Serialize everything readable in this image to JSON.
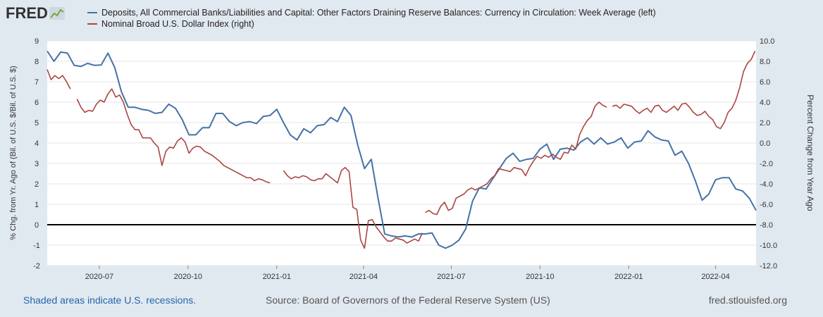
{
  "logo": {
    "text": "FRED",
    "icon": "fred-chart-icon"
  },
  "legend": [
    {
      "label": "Deposits, All Commercial Banks/Liabilities and Capital: Other Factors Draining Reserve Balances: Currency in Circulation: Week Average (left)",
      "color": "#4572a7"
    },
    {
      "label": "Nominal Broad U.S. Dollar Index (right)",
      "color": "#aa4643"
    }
  ],
  "footer": {
    "recession_note": "Shaded areas indicate U.S. recessions.",
    "source": "Source: Board of Governors of the Federal Reserve System (US)",
    "site": "fred.stlouisfed.org"
  },
  "chart_data": {
    "type": "line",
    "x_range": [
      "2020-05-08",
      "2022-05-13"
    ],
    "x_ticks": [
      {
        "date": "2020-07-01",
        "label": "2020-07"
      },
      {
        "date": "2020-10-01",
        "label": "2020-10"
      },
      {
        "date": "2021-01-01",
        "label": "2021-01"
      },
      {
        "date": "2021-04-01",
        "label": "2021-04"
      },
      {
        "date": "2021-07-01",
        "label": "2021-07"
      },
      {
        "date": "2021-10-01",
        "label": "2021-10"
      },
      {
        "date": "2022-01-01",
        "label": "2022-01"
      },
      {
        "date": "2022-04-01",
        "label": "2022-04"
      }
    ],
    "y_left": {
      "label": "% Chg. from Yr. Ago of (Bil. of U.S. $/Bil. of U.S. $)",
      "range": [
        -2,
        9
      ],
      "ticks": [
        9,
        8,
        7,
        6,
        5,
        4,
        3,
        2,
        1,
        0,
        -1,
        -2
      ],
      "tick_labels": [
        "9",
        "8",
        "7",
        "6",
        "5",
        "4",
        "3",
        "2",
        "1",
        "0",
        "-1",
        "-2"
      ]
    },
    "y_right": {
      "label": "Percent Change from Year Ago",
      "range": [
        -12,
        10
      ],
      "ticks": [
        10,
        8,
        6,
        4,
        2,
        0,
        -2,
        -4,
        -6,
        -8,
        -10,
        -12
      ],
      "tick_labels": [
        "10.0",
        "8.0",
        "6.0",
        "4.0",
        "2.0",
        "0.0",
        "-2.0",
        "-4.0",
        "-6.0",
        "-8.0",
        "-10.0",
        "-12.0"
      ]
    },
    "zero_line_left": 0,
    "series": [
      {
        "name": "Currency in Circulation: Week Average (left)",
        "axis": "left",
        "color": "#4572a7",
        "dates": [
          "2020-05-08",
          "2020-05-15",
          "2020-05-22",
          "2020-05-29",
          "2020-06-05",
          "2020-06-12",
          "2020-06-19",
          "2020-06-26",
          "2020-07-03",
          "2020-07-10",
          "2020-07-17",
          "2020-07-24",
          "2020-07-31",
          "2020-08-07",
          "2020-08-14",
          "2020-08-21",
          "2020-08-28",
          "2020-09-04",
          "2020-09-11",
          "2020-09-18",
          "2020-09-25",
          "2020-10-02",
          "2020-10-09",
          "2020-10-16",
          "2020-10-23",
          "2020-10-30",
          "2020-11-06",
          "2020-11-13",
          "2020-11-20",
          "2020-11-27",
          "2020-12-04",
          "2020-12-11",
          "2020-12-18",
          "2020-12-25",
          "2021-01-01",
          "2021-01-08",
          "2021-01-15",
          "2021-01-22",
          "2021-01-29",
          "2021-02-05",
          "2021-02-12",
          "2021-02-19",
          "2021-02-26",
          "2021-03-05",
          "2021-03-12",
          "2021-03-19",
          "2021-03-26",
          "2021-04-02",
          "2021-04-09",
          "2021-04-16",
          "2021-04-23",
          "2021-04-30",
          "2021-05-07",
          "2021-05-14",
          "2021-05-21",
          "2021-05-28",
          "2021-06-04",
          "2021-06-11",
          "2021-06-18",
          "2021-06-25",
          "2021-07-02",
          "2021-07-09",
          "2021-07-16",
          "2021-07-23",
          "2021-07-30",
          "2021-08-06",
          "2021-08-13",
          "2021-08-20",
          "2021-08-27",
          "2021-09-03",
          "2021-09-10",
          "2021-09-17",
          "2021-09-24",
          "2021-10-01",
          "2021-10-08",
          "2021-10-15",
          "2021-10-22",
          "2021-10-29",
          "2021-11-05",
          "2021-11-12",
          "2021-11-19",
          "2021-11-26",
          "2021-12-03",
          "2021-12-10",
          "2021-12-17",
          "2021-12-24",
          "2021-12-31",
          "2022-01-07",
          "2022-01-14",
          "2022-01-21",
          "2022-01-28",
          "2022-02-04",
          "2022-02-11",
          "2022-02-18",
          "2022-02-25",
          "2022-03-04",
          "2022-03-11",
          "2022-03-18",
          "2022-03-25",
          "2022-04-01",
          "2022-04-08",
          "2022-04-15",
          "2022-04-22",
          "2022-04-29",
          "2022-05-06",
          "2022-05-13"
        ],
        "values": [
          8.5,
          8.0,
          8.45,
          8.4,
          7.8,
          7.75,
          7.9,
          7.8,
          7.82,
          8.4,
          7.7,
          6.5,
          5.75,
          5.75,
          5.65,
          5.6,
          5.45,
          5.5,
          5.9,
          5.7,
          5.15,
          4.4,
          4.4,
          4.75,
          4.75,
          5.45,
          5.45,
          5.05,
          4.85,
          5.0,
          5.05,
          4.95,
          5.3,
          5.35,
          5.65,
          5.0,
          4.4,
          4.15,
          4.7,
          4.5,
          4.85,
          4.9,
          5.25,
          5.05,
          5.75,
          5.35,
          3.9,
          2.75,
          3.2,
          1.3,
          -0.45,
          -0.55,
          -0.6,
          -0.55,
          -0.6,
          -0.45,
          -0.45,
          -0.4,
          -1.0,
          -1.15,
          -1.0,
          -0.75,
          -0.2,
          1.15,
          1.8,
          1.75,
          2.25,
          2.75,
          3.25,
          3.5,
          3.1,
          3.2,
          3.25,
          3.7,
          3.95,
          3.2,
          3.7,
          3.75,
          3.65,
          4.05,
          4.25,
          3.95,
          4.25,
          3.95,
          4.05,
          4.25,
          3.75,
          4.05,
          4.1,
          4.6,
          4.3,
          4.15,
          4.1,
          3.4,
          3.6,
          3.0,
          2.15,
          1.2,
          1.5,
          2.2,
          2.3,
          2.3,
          1.75,
          1.65,
          1.3,
          0.7
        ]
      },
      {
        "name": "Nominal Broad U.S. Dollar Index (right)",
        "axis": "right",
        "color": "#aa4643",
        "segments": [
          {
            "dates": [
              "2020-05-08",
              "2020-05-12",
              "2020-05-16",
              "2020-05-20",
              "2020-05-24",
              "2020-05-28",
              "2020-06-01"
            ],
            "values": [
              7.2,
              6.2,
              6.6,
              6.3,
              6.6,
              6.0,
              5.3
            ]
          },
          {
            "dates": [
              "2020-06-08",
              "2020-06-12",
              "2020-06-16",
              "2020-06-20",
              "2020-06-24",
              "2020-06-28",
              "2020-07-02",
              "2020-07-06",
              "2020-07-10",
              "2020-07-14",
              "2020-07-18",
              "2020-07-22",
              "2020-07-26",
              "2020-07-30",
              "2020-08-03",
              "2020-08-07",
              "2020-08-11",
              "2020-08-15",
              "2020-08-19",
              "2020-08-23",
              "2020-08-27",
              "2020-08-31",
              "2020-09-04",
              "2020-09-08",
              "2020-09-12",
              "2020-09-16",
              "2020-09-20",
              "2020-09-24",
              "2020-09-28",
              "2020-10-02",
              "2020-10-06",
              "2020-10-10",
              "2020-10-14",
              "2020-10-18",
              "2020-10-22",
              "2020-10-26",
              "2020-10-30",
              "2020-11-03",
              "2020-11-07",
              "2020-11-11",
              "2020-11-15",
              "2020-11-19",
              "2020-11-23",
              "2020-11-27",
              "2020-12-01",
              "2020-12-05",
              "2020-12-09",
              "2020-12-13",
              "2020-12-17",
              "2020-12-21",
              "2020-12-25"
            ],
            "values": [
              4.3,
              3.5,
              3.0,
              3.2,
              3.1,
              3.8,
              4.2,
              4.0,
              4.8,
              5.3,
              4.5,
              4.7,
              4.0,
              2.8,
              1.8,
              1.3,
              1.3,
              0.5,
              0.5,
              0.5,
              0.0,
              -0.4,
              -2.2,
              -0.8,
              -0.4,
              -0.5,
              0.2,
              0.5,
              0.1,
              -1.0,
              -0.5,
              -0.3,
              -0.4,
              -0.8,
              -1.0,
              -1.2,
              -1.5,
              -1.8,
              -2.2,
              -2.4,
              -2.6,
              -2.8,
              -3.0,
              -3.2,
              -3.4,
              -3.4,
              -3.7,
              -3.5,
              -3.6,
              -3.8,
              -3.9
            ]
          },
          {
            "dates": [
              "2021-01-08",
              "2021-01-12",
              "2021-01-16",
              "2021-01-20",
              "2021-01-24",
              "2021-01-28",
              "2021-02-01",
              "2021-02-05",
              "2021-02-09",
              "2021-02-13",
              "2021-02-17",
              "2021-02-21",
              "2021-02-25",
              "2021-03-01",
              "2021-03-05",
              "2021-03-09",
              "2021-03-13",
              "2021-03-17",
              "2021-03-21",
              "2021-03-25",
              "2021-03-29",
              "2021-04-02",
              "2021-04-06",
              "2021-04-10",
              "2021-04-14",
              "2021-04-18",
              "2021-04-22",
              "2021-04-26",
              "2021-04-30",
              "2021-05-04",
              "2021-05-08",
              "2021-05-12",
              "2021-05-16",
              "2021-05-20",
              "2021-05-24",
              "2021-05-28",
              "2021-06-01"
            ],
            "values": [
              -2.7,
              -3.2,
              -3.5,
              -3.3,
              -3.4,
              -3.2,
              -3.3,
              -3.6,
              -3.7,
              -3.5,
              -3.5,
              -3.0,
              -3.3,
              -3.6,
              -3.9,
              -2.7,
              -2.4,
              -2.8,
              -6.3,
              -6.5,
              -9.5,
              -10.3,
              -7.6,
              -7.5,
              -8.2,
              -8.7,
              -9.2,
              -9.6,
              -9.6,
              -9.3,
              -9.4,
              -9.5,
              -9.8,
              -9.6,
              -9.4,
              -9.6,
              -8.8
            ]
          },
          {
            "dates": [
              "2021-06-04",
              "2021-06-08",
              "2021-06-12",
              "2021-06-16",
              "2021-06-20",
              "2021-06-24",
              "2021-06-28",
              "2021-07-02",
              "2021-07-06",
              "2021-07-10",
              "2021-07-14",
              "2021-07-18",
              "2021-07-22",
              "2021-07-26",
              "2021-07-30",
              "2021-08-03",
              "2021-08-07",
              "2021-08-11",
              "2021-08-15",
              "2021-08-19",
              "2021-08-23",
              "2021-08-27",
              "2021-08-31",
              "2021-09-04",
              "2021-09-08",
              "2021-09-12",
              "2021-09-16",
              "2021-09-20",
              "2021-09-24",
              "2021-09-28",
              "2021-10-02",
              "2021-10-06",
              "2021-10-10",
              "2021-10-14",
              "2021-10-18",
              "2021-10-22",
              "2021-10-26",
              "2021-10-30",
              "2021-11-03",
              "2021-11-07",
              "2021-11-11",
              "2021-11-15",
              "2021-11-19",
              "2021-11-23",
              "2021-11-27",
              "2021-12-01",
              "2021-12-05",
              "2021-12-09"
            ],
            "values": [
              -6.8,
              -6.6,
              -6.9,
              -7.0,
              -6.2,
              -5.8,
              -6.6,
              -6.4,
              -5.4,
              -5.2,
              -5.0,
              -4.6,
              -4.4,
              -4.6,
              -4.4,
              -4.2,
              -4.0,
              -3.5,
              -3.2,
              -2.5,
              -2.6,
              -2.7,
              -2.8,
              -2.4,
              -2.5,
              -2.6,
              -3.2,
              -2.4,
              -1.8,
              -1.3,
              -1.5,
              -1.2,
              -1.4,
              -1.1,
              -1.4,
              -1.6,
              -0.9,
              -1.0,
              -0.2,
              -0.6,
              0.8,
              1.6,
              2.2,
              2.6,
              3.6,
              4.0,
              3.7,
              3.5
            ]
          },
          {
            "dates": [
              "2021-12-15",
              "2021-12-19",
              "2021-12-23",
              "2021-12-27",
              "2021-12-31",
              "2022-01-04",
              "2022-01-08",
              "2022-01-12",
              "2022-01-16",
              "2022-01-20",
              "2022-01-24",
              "2022-01-28",
              "2022-02-01",
              "2022-02-05",
              "2022-02-09",
              "2022-02-13",
              "2022-02-17",
              "2022-02-21",
              "2022-02-25",
              "2022-03-01",
              "2022-03-05",
              "2022-03-09",
              "2022-03-13",
              "2022-03-17",
              "2022-03-21",
              "2022-03-25",
              "2022-03-29",
              "2022-04-02",
              "2022-04-06",
              "2022-04-10",
              "2022-04-14",
              "2022-04-18",
              "2022-04-22",
              "2022-04-26",
              "2022-04-30",
              "2022-05-04",
              "2022-05-08",
              "2022-05-12"
            ],
            "values": [
              3.6,
              3.7,
              3.4,
              3.8,
              3.7,
              3.6,
              3.2,
              2.9,
              3.2,
              3.4,
              3.0,
              3.6,
              3.7,
              3.2,
              3.0,
              3.3,
              3.6,
              3.2,
              3.8,
              3.9,
              3.5,
              3.0,
              2.7,
              2.8,
              3.1,
              2.6,
              2.3,
              1.6,
              1.4,
              2.0,
              3.0,
              3.4,
              4.2,
              5.4,
              7.0,
              7.8,
              8.2,
              9.0
            ]
          }
        ]
      }
    ]
  }
}
